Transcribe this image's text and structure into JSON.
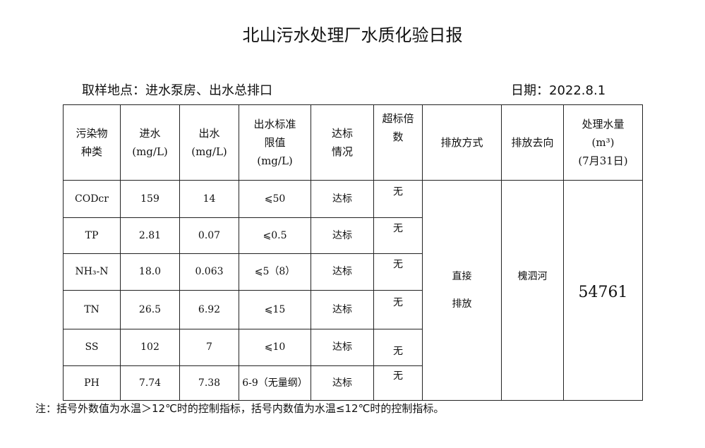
{
  "title": "北山污水处理厂水质化验日报",
  "location": "取样地点：进水泵房、出水总排口",
  "date": "日期：2022.8.1",
  "headers": {
    "pollutant": [
      "污染物",
      "种类"
    ],
    "inflow": [
      "进水",
      "(mg/L)"
    ],
    "outflow": [
      "出水",
      "(mg/L)"
    ],
    "limit": [
      "出水标准",
      "限值",
      "(mg/L)"
    ],
    "status": [
      "达标",
      "情况"
    ],
    "exceed": [
      "超标倍",
      "数"
    ],
    "discharge_mode": "排放方式",
    "discharge_to": "排放去向",
    "volume": [
      "处理水量",
      "(m³)",
      "(7月31日)"
    ]
  },
  "rows": [
    {
      "name": "CODcr",
      "in": "159",
      "out": "14",
      "limit": "⩽50",
      "status": "达标",
      "exceed": "无"
    },
    {
      "name": "TP",
      "in": "2.81",
      "out": "0.07",
      "limit": "⩽0.5",
      "status": "达标",
      "exceed": "无"
    },
    {
      "name": "NH₃-N",
      "in": "18.0",
      "out": "0.063",
      "limit": "⩽5（8）",
      "status": "达标",
      "exceed": "无"
    },
    {
      "name": "TN",
      "in": "26.5",
      "out": "6.92",
      "limit": "⩽15",
      "status": "达标",
      "exceed": "无"
    },
    {
      "name": "SS",
      "in": "102",
      "out": "7",
      "limit": "⩽10",
      "status": "达标",
      "exceed": "无"
    },
    {
      "name": "PH",
      "in": "7.74",
      "out": "7.38",
      "limit": "6-9（无量纲）",
      "status": "达标",
      "exceed": "无"
    }
  ],
  "discharge_mode": [
    "直接",
    "排放"
  ],
  "discharge_to": "槐泗河",
  "volume": "54761",
  "note": "注：括号外数值为水温＞12℃时的控制指标，括号内数值为水温≤12℃时的控制指标。"
}
